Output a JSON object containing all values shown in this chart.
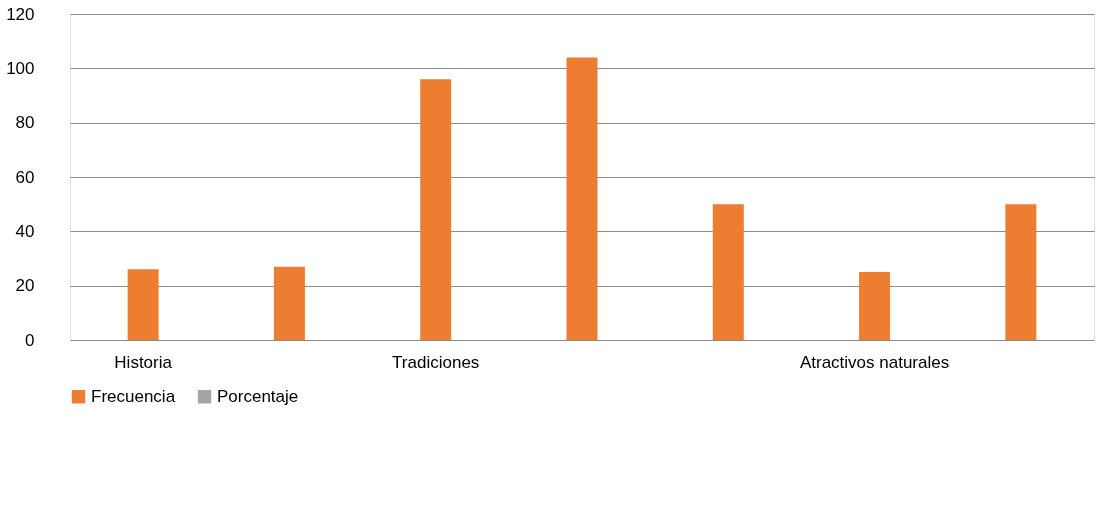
{
  "chart_data": {
    "type": "bar",
    "categories": [
      "Historia",
      null,
      "Tradiciones",
      null,
      null,
      "Atractivos naturales",
      null
    ],
    "series": [
      {
        "name": "Frecuencia",
        "color": "#ed7d31",
        "values": [
          26,
          27,
          96,
          104,
          50,
          25,
          50
        ]
      },
      {
        "name": "Porcentaje",
        "color": "#a5a5a5",
        "values": [
          null,
          null,
          null,
          null,
          null,
          null,
          null
        ]
      }
    ],
    "ylim": [
      0,
      120
    ],
    "yticks": [
      0,
      20,
      40,
      60,
      80,
      100,
      120
    ],
    "grid": "y",
    "legend": "bottom"
  }
}
